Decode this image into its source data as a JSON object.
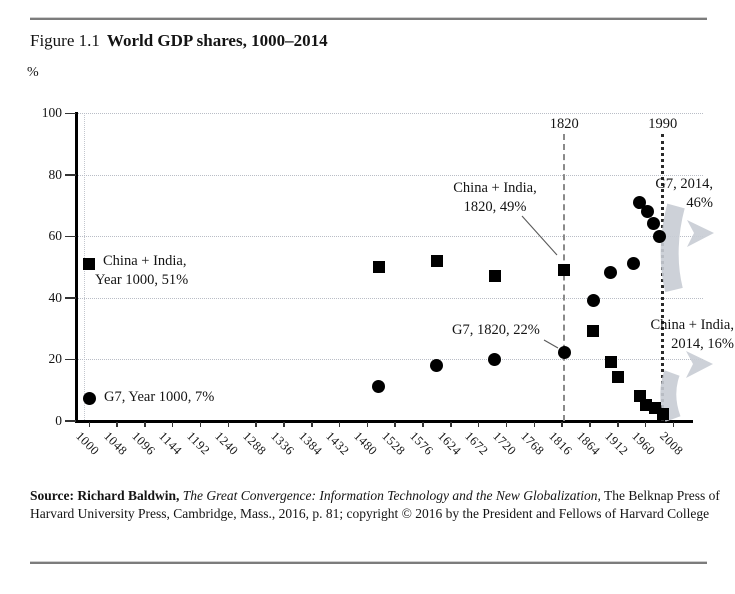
{
  "figure": {
    "label": "Figure 1.1",
    "title": "World GDP shares, 1000–2014",
    "y_unit": "%"
  },
  "colors": {
    "marker": "#000000",
    "trend_arrow": "#c8ccd4",
    "gridline": "#b9bdc6",
    "refline_1820": "#8a8a8a",
    "refline_1990": "#2a2a2a"
  },
  "chart_data": {
    "type": "scatter",
    "title": "World GDP shares, 1000–2014",
    "xlabel": "Year",
    "ylabel": "%",
    "xlim": [
      1000,
      2008
    ],
    "ylim": [
      0,
      100
    ],
    "grid": "horizontal dotted lines at 20/40/60/80/100",
    "legend": "none (series identified by annotations: squares = China + India, circles = G7)",
    "y_ticks": [
      100,
      80,
      60,
      40,
      20,
      0
    ],
    "x_ticks": [
      1000,
      1048,
      1096,
      1144,
      1192,
      1240,
      1288,
      1336,
      1384,
      1432,
      1480,
      1528,
      1576,
      1624,
      1672,
      1720,
      1768,
      1816,
      1864,
      1912,
      1960,
      2008
    ],
    "series": [
      {
        "name": "China + India",
        "marker": "square",
        "points": [
          [
            1000,
            51
          ],
          [
            1500,
            50
          ],
          [
            1600,
            52
          ],
          [
            1700,
            47
          ],
          [
            1820,
            49
          ],
          [
            1870,
            29
          ],
          [
            1900,
            19
          ],
          [
            1913,
            14
          ],
          [
            1950,
            8
          ],
          [
            1962,
            5
          ],
          [
            1976,
            4
          ],
          [
            1990,
            2
          ]
        ]
      },
      {
        "name": "G7",
        "marker": "circle",
        "points": [
          [
            1000,
            7
          ],
          [
            1500,
            11
          ],
          [
            1600,
            18
          ],
          [
            1700,
            20
          ],
          [
            1820,
            22
          ],
          [
            1870,
            39
          ],
          [
            1900,
            48
          ],
          [
            1940,
            51
          ],
          [
            1950,
            71
          ],
          [
            1964,
            68
          ],
          [
            1974,
            64
          ],
          [
            1984,
            60
          ]
        ]
      }
    ],
    "ref_lines": [
      {
        "label": "1820",
        "year": 1820,
        "style": "gray dashed"
      },
      {
        "label": "1990",
        "year": 1990,
        "style": "dark dotted"
      }
    ],
    "annotations": {
      "ci_1000": {
        "lines": [
          "China + India,",
          "Year 1000, 51%"
        ],
        "target": [
          1000,
          51
        ]
      },
      "g7_1000": {
        "lines": [
          "G7, Year 1000, 7%"
        ],
        "target": [
          1000,
          7
        ]
      },
      "ci_1820": {
        "lines": [
          "China + India,",
          "1820, 49%"
        ],
        "target": [
          1820,
          49
        ]
      },
      "g7_1820": {
        "lines": [
          "G7, 1820, 22%"
        ],
        "target": [
          1820,
          22
        ]
      },
      "g7_2014": {
        "lines": [
          "G7, 2014,",
          "46%"
        ],
        "target": [
          2014,
          46
        ]
      },
      "ci_2014": {
        "lines": [
          "China + India,",
          "2014, 16%"
        ],
        "target": [
          2014,
          16
        ]
      }
    },
    "trend_arrows": [
      {
        "series": "G7",
        "shape": "sweeps down from ~70% peak then points right",
        "to_value": 46
      },
      {
        "series": "China + India",
        "shape": "rises from bottom then points right",
        "to_value": 16
      }
    ]
  },
  "source": {
    "prefix": "Source: Richard Baldwin,",
    "title_italic": "The Great Convergence: Information Technology and the New Globalization,",
    "rest": "The Belknap Press of Harvard University Press, Cambridge, Mass., 2016, p. 81; copyright © 2016 by the President and Fellows of Harvard College"
  }
}
